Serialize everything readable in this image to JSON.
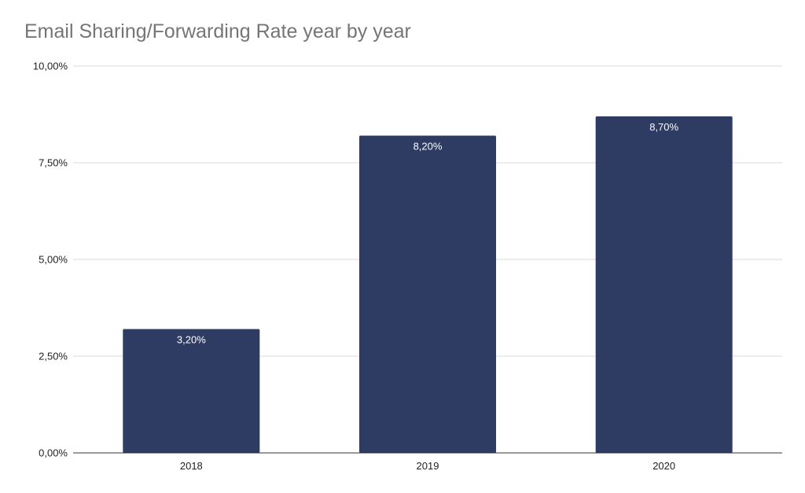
{
  "chart_data": {
    "type": "bar",
    "title": "Email Sharing/Forwarding Rate year by year",
    "xlabel": "",
    "ylabel": "",
    "categories": [
      "2018",
      "2019",
      "2020"
    ],
    "values": [
      3.2,
      8.2,
      8.7
    ],
    "data_labels": [
      "3,20%",
      "8,20%",
      "8,70%"
    ],
    "ylim": [
      0,
      10
    ],
    "y_ticks": [
      0,
      2.5,
      5,
      7.5,
      10
    ],
    "y_tick_labels": [
      "0,00%",
      "2,50%",
      "5,00%",
      "7,50%",
      "10,00%"
    ],
    "grid": true,
    "legend": "none",
    "bar_color": "#2e3b63"
  }
}
